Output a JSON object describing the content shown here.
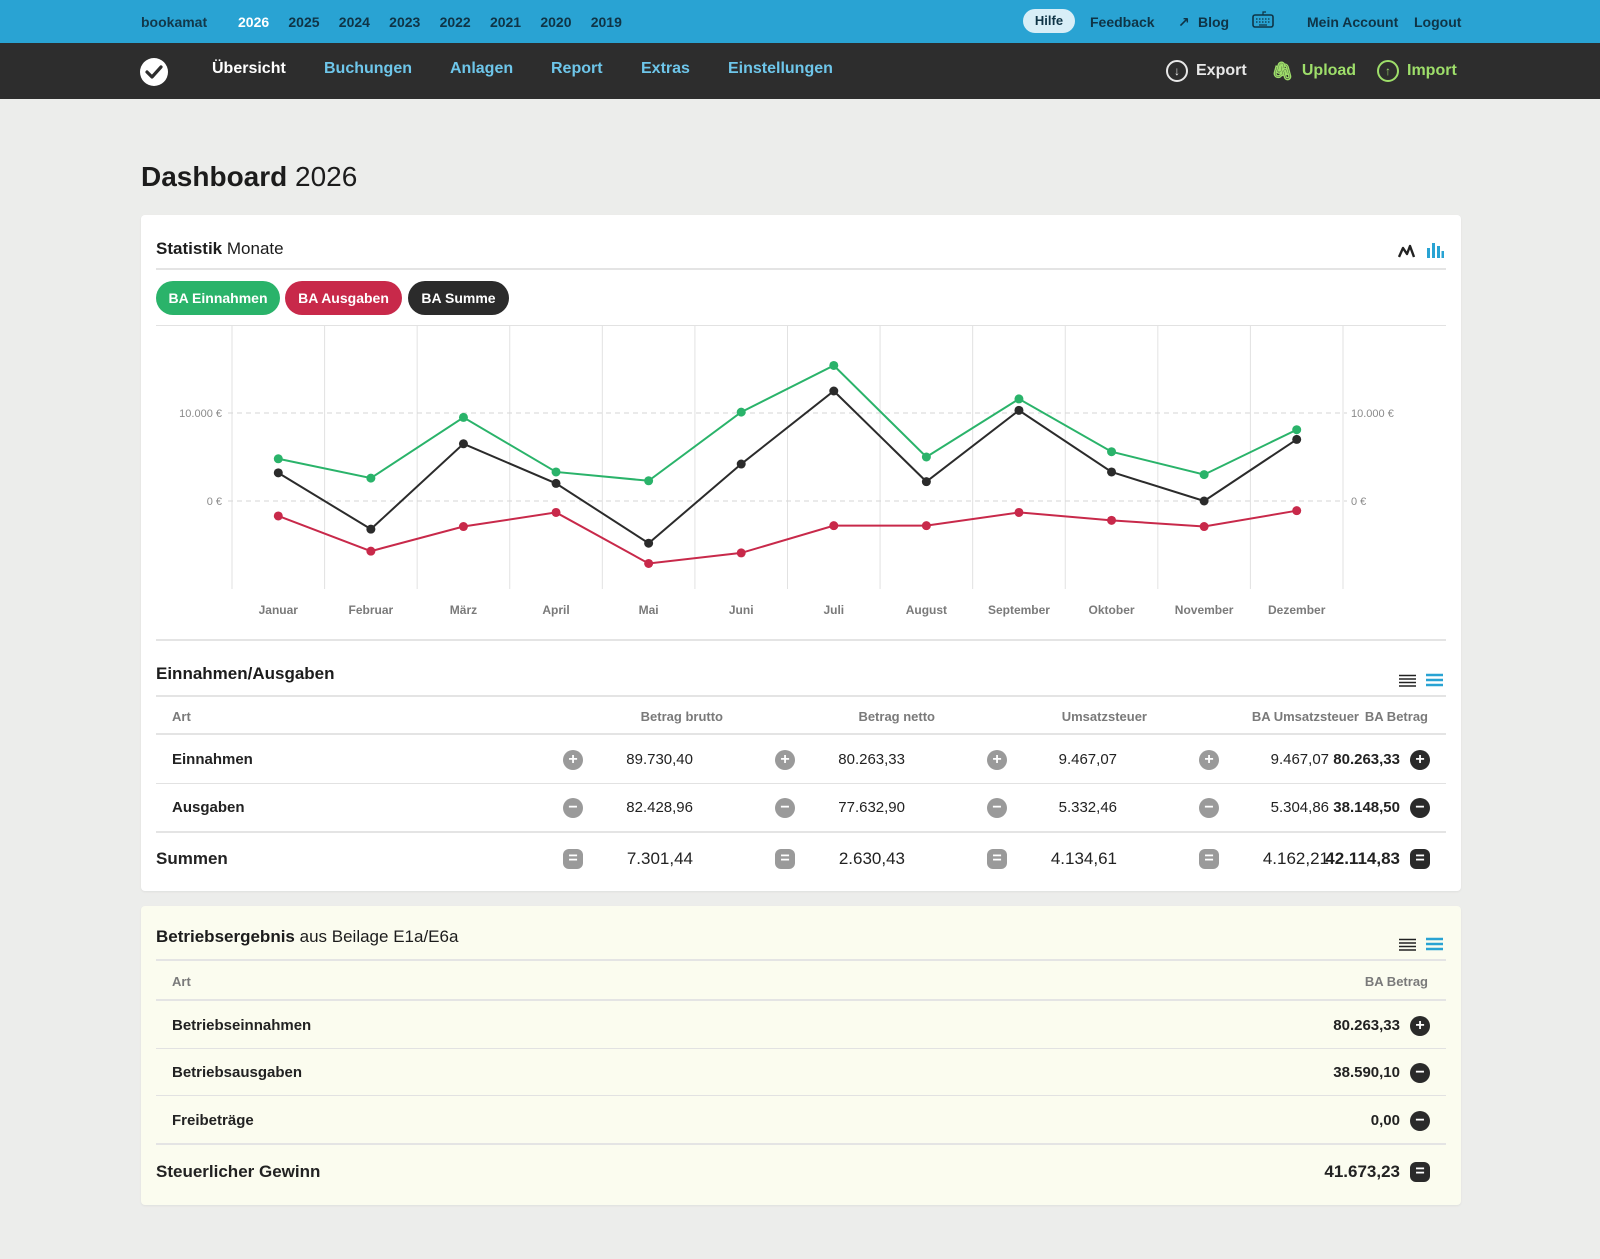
{
  "topbar": {
    "brand": "bookamat",
    "years": [
      "2026",
      "2025",
      "2024",
      "2023",
      "2022",
      "2021",
      "2020",
      "2019"
    ],
    "active_year": "2026",
    "hilfe": "Hilfe",
    "feedback": "Feedback",
    "blog": "Blog",
    "account": "Mein Account",
    "logout": "Logout"
  },
  "nav": {
    "items": [
      "Übersicht",
      "Buchungen",
      "Anlagen",
      "Report",
      "Extras",
      "Einstellungen"
    ],
    "export": "Export",
    "upload": "Upload",
    "import": "Import"
  },
  "page": {
    "title_bold": "Dashboard",
    "title_light": "2026"
  },
  "stats": {
    "title_bold": "Statistik",
    "title_light": "Monate",
    "pills": [
      "BA Einnahmen",
      "BA Ausgaben",
      "BA Summe"
    ]
  },
  "colors": {
    "einnahmen": "#2ab36a",
    "ausgaben": "#c8294a",
    "summe": "#2b2b2b",
    "accent": "#29a3d3"
  },
  "chart_data": {
    "type": "line",
    "categories": [
      "Januar",
      "Februar",
      "März",
      "April",
      "Mai",
      "Juni",
      "Juli",
      "August",
      "September",
      "Oktober",
      "November",
      "Dezember"
    ],
    "y_ticks": [
      "10.000 €",
      "0 €"
    ],
    "ylim": [
      -10000,
      20000
    ],
    "series": [
      {
        "name": "BA Einnahmen",
        "values": [
          4800,
          2600,
          9500,
          3300,
          2300,
          10100,
          15400,
          5000,
          11600,
          5600,
          3000,
          8100
        ]
      },
      {
        "name": "BA Ausgaben",
        "values": [
          -1700,
          -5700,
          -2900,
          -1300,
          -7100,
          -5900,
          -2800,
          -2800,
          -1300,
          -2200,
          -2900,
          -1100
        ]
      },
      {
        "name": "BA Summe",
        "values": [
          3200,
          -3200,
          6500,
          2000,
          -4800,
          4200,
          12500,
          2200,
          10300,
          3300,
          0,
          7000
        ]
      }
    ]
  },
  "einaus": {
    "title": "Einnahmen/Ausgaben",
    "headers": [
      "Art",
      "Betrag brutto",
      "Betrag netto",
      "Umsatzsteuer",
      "BA Umsatzsteuer",
      "BA Betrag"
    ],
    "rows": [
      {
        "label": "Einnahmen",
        "values": [
          "89.730,40",
          "80.263,33",
          "9.467,07",
          "9.467,07",
          "80.263,33"
        ],
        "sign": "+"
      },
      {
        "label": "Ausgaben",
        "values": [
          "82.428,96",
          "77.632,90",
          "5.332,46",
          "5.304,86",
          "38.148,50"
        ],
        "sign": "−"
      }
    ],
    "total": {
      "label": "Summen",
      "values": [
        "7.301,44",
        "2.630,43",
        "4.134,61",
        "4.162,21",
        "42.114,83"
      ],
      "sign": "="
    }
  },
  "betrieb": {
    "title_bold": "Betriebsergebnis",
    "title_light": "aus Beilage E1a/E6a",
    "headers": [
      "Art",
      "BA Betrag"
    ],
    "rows": [
      {
        "label": "Betriebseinnahmen",
        "value": "80.263,33",
        "sign": "+"
      },
      {
        "label": "Betriebsausgaben",
        "value": "38.590,10",
        "sign": "−"
      },
      {
        "label": "Freibeträge",
        "value": "0,00",
        "sign": "−"
      }
    ],
    "total": {
      "label": "Steuerlicher Gewinn",
      "value": "41.673,23",
      "sign": "="
    }
  }
}
